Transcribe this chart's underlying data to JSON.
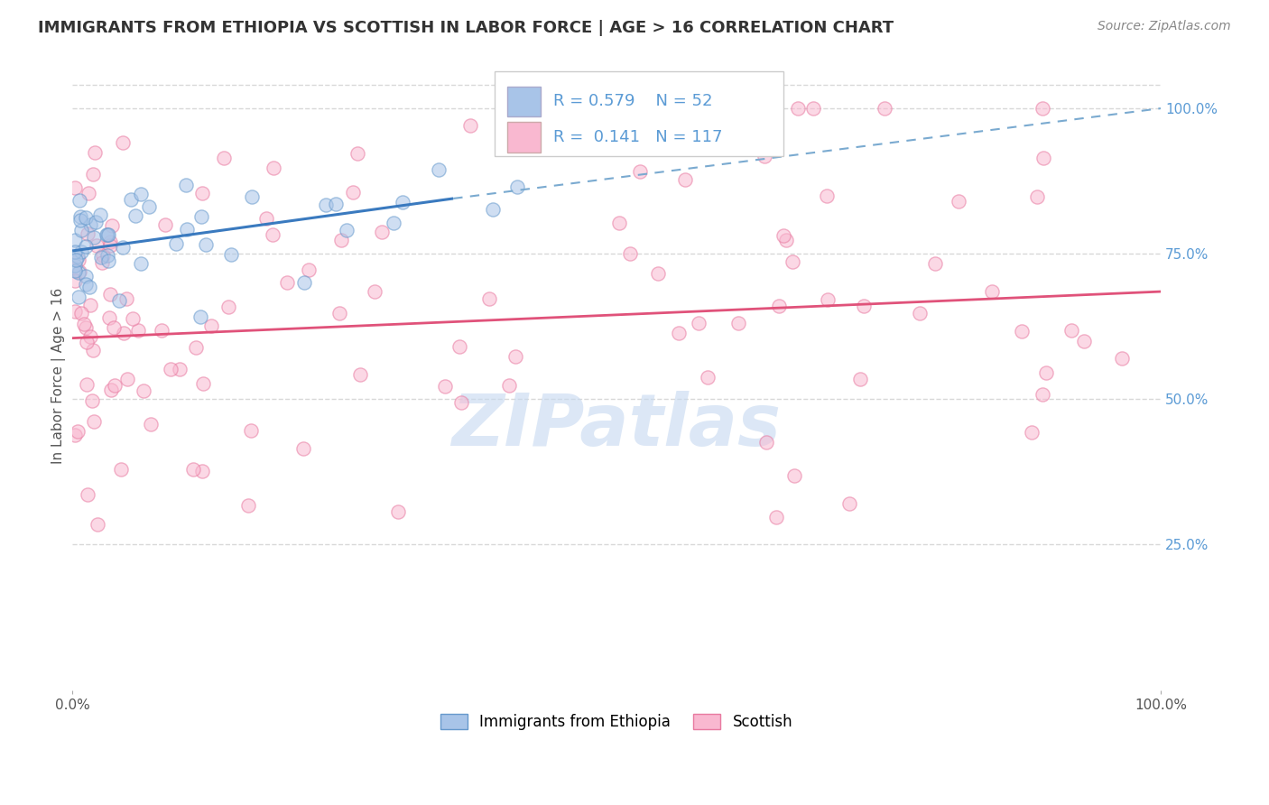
{
  "title": "IMMIGRANTS FROM ETHIOPIA VS SCOTTISH IN LABOR FORCE | AGE > 16 CORRELATION CHART",
  "source": "Source: ZipAtlas.com",
  "ylabel": "In Labor Force | Age > 16",
  "legend_entries": [
    {
      "label": "Immigrants from Ethiopia",
      "color": "#a8c4e8",
      "border_color": "#6699cc",
      "R": 0.579,
      "N": 52
    },
    {
      "label": "Scottish",
      "color": "#f9b8d0",
      "border_color": "#e87aa0",
      "R": 0.141,
      "N": 117
    }
  ],
  "watermark": "ZIPatlas",
  "watermark_color": "#c5d8f0",
  "background_color": "#ffffff",
  "grid_color": "#d8d8d8",
  "ethiopia_trend": {
    "x_start": 0.0,
    "x_end": 35.0,
    "y_start": 75.5,
    "y_end": 84.5,
    "color": "#3a7abf",
    "linewidth": 2.2
  },
  "ethiopia_dashed": {
    "x_start": 35.0,
    "x_end": 100.0,
    "y_start": 84.5,
    "y_end": 100.0,
    "color": "#7aaad0",
    "linewidth": 1.5
  },
  "scottish_trend": {
    "x_start": 0.0,
    "x_end": 100.0,
    "y_start": 60.5,
    "y_end": 68.5,
    "color": "#e0527a",
    "linewidth": 2.0
  },
  "xlim": [
    0,
    100
  ],
  "ylim": [
    0,
    108
  ],
  "ytick_positions_right": [
    25,
    50,
    75,
    100
  ],
  "yticklabels_right": [
    "25.0%",
    "50.0%",
    "75.0%",
    "100.0%"
  ],
  "xticklabels": [
    "0.0%",
    "100.0%"
  ],
  "title_fontsize": 13,
  "title_color": "#333333",
  "axis_label_color": "#555555",
  "tick_label_color_right": "#5b9bd5",
  "source_fontsize": 10,
  "source_color": "#888888",
  "scatter_size": 120,
  "scatter_alpha": 0.55,
  "scatter_linewidth": 1.0
}
